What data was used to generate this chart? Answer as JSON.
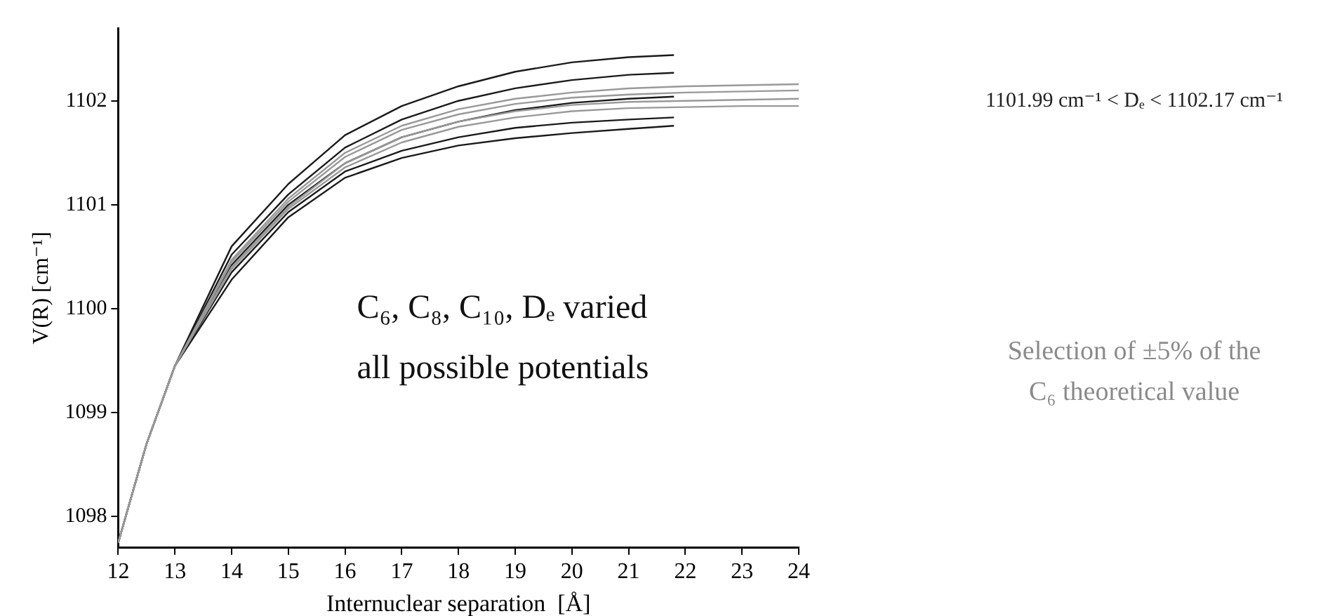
{
  "chart_data": {
    "type": "line",
    "xlabel": "Internuclear separation  [Å]",
    "ylabel": "V(R) [cm⁻¹]",
    "xlim": [
      12,
      24
    ],
    "xticks": [
      12,
      13,
      14,
      15,
      16,
      17,
      18,
      19,
      20,
      21,
      22,
      23,
      24
    ],
    "ylim": [
      1097.7,
      1102.7
    ],
    "yticks": [
      1098,
      1099,
      1100,
      1101,
      1102
    ],
    "grid": false,
    "legend": false,
    "marker": "none",
    "annotations": [
      "C₆, C₈, C₁₀, Dₑ varied",
      "all possible potentials",
      "1101.99 cm⁻¹ < Dₑ < 1102.17 cm⁻¹",
      "Selection of ±5% of the",
      "C₆ theoretical value"
    ],
    "series": [
      {
        "color": "#999999",
        "x": [
          12,
          12.5,
          13,
          14,
          15,
          16,
          17,
          18,
          19,
          20,
          21,
          22,
          23,
          24
        ],
        "values": [
          1097.75,
          1098.7,
          1099.45,
          1100.47,
          1101.06,
          1101.5,
          1101.76,
          1101.92,
          1102.02,
          1102.08,
          1102.12,
          1102.14,
          1102.15,
          1102.16
        ]
      },
      {
        "color": "#999999",
        "x": [
          12,
          12.5,
          13,
          14,
          15,
          16,
          17,
          18,
          19,
          20,
          21,
          22,
          23,
          24
        ],
        "values": [
          1097.75,
          1098.7,
          1099.45,
          1100.45,
          1101.03,
          1101.46,
          1101.72,
          1101.87,
          1101.97,
          1102.03,
          1102.06,
          1102.08,
          1102.09,
          1102.1
        ]
      },
      {
        "color": "#999999",
        "x": [
          12,
          12.5,
          13,
          14,
          15,
          16,
          17,
          18,
          19,
          20,
          21,
          22,
          23,
          24
        ],
        "values": [
          1097.75,
          1098.7,
          1099.45,
          1100.4,
          1100.98,
          1101.4,
          1101.65,
          1101.8,
          1101.9,
          1101.96,
          1101.99,
          1102.0,
          1102.01,
          1102.02
        ]
      },
      {
        "color": "#999999",
        "x": [
          12,
          12.5,
          13,
          14,
          15,
          16,
          17,
          18,
          19,
          20,
          21,
          22,
          23,
          24
        ],
        "values": [
          1097.75,
          1098.7,
          1099.45,
          1100.38,
          1100.96,
          1101.36,
          1101.6,
          1101.75,
          1101.84,
          1101.9,
          1101.93,
          1101.94,
          1101.95,
          1101.95
        ]
      },
      {
        "color": "#1a1a1a",
        "x": [
          12,
          12.5,
          13,
          14,
          15,
          16,
          17,
          18,
          19,
          20,
          21,
          21.8
        ],
        "values": [
          1097.75,
          1098.7,
          1099.45,
          1100.6,
          1101.2,
          1101.67,
          1101.95,
          1102.14,
          1102.28,
          1102.37,
          1102.42,
          1102.44
        ]
      },
      {
        "color": "#1a1a1a",
        "x": [
          12,
          12.5,
          13,
          14,
          15,
          16,
          17,
          18,
          19,
          20,
          21,
          21.8
        ],
        "values": [
          1097.75,
          1098.7,
          1099.45,
          1100.52,
          1101.1,
          1101.55,
          1101.82,
          1102.0,
          1102.12,
          1102.2,
          1102.25,
          1102.27
        ]
      },
      {
        "color": "#1a1a1a",
        "x": [
          12,
          12.5,
          13,
          14,
          15,
          16,
          17,
          18,
          19,
          20,
          21,
          21.8
        ],
        "values": [
          1097.75,
          1098.7,
          1099.45,
          1100.42,
          1101.0,
          1101.4,
          1101.65,
          1101.8,
          1101.91,
          1101.98,
          1102.02,
          1102.04
        ]
      },
      {
        "color": "#1a1a1a",
        "x": [
          12,
          12.5,
          13,
          14,
          15,
          16,
          17,
          18,
          19,
          20,
          21,
          21.8
        ],
        "values": [
          1097.75,
          1098.7,
          1099.45,
          1100.35,
          1100.93,
          1101.32,
          1101.52,
          1101.65,
          1101.74,
          1101.79,
          1101.82,
          1101.84
        ]
      },
      {
        "color": "#1a1a1a",
        "x": [
          12,
          12.5,
          13,
          14,
          15,
          16,
          17,
          18,
          19,
          20,
          21,
          21.8
        ],
        "values": [
          1097.75,
          1098.7,
          1099.45,
          1100.28,
          1100.88,
          1101.26,
          1101.45,
          1101.57,
          1101.64,
          1101.69,
          1101.73,
          1101.76
        ]
      }
    ]
  }
}
